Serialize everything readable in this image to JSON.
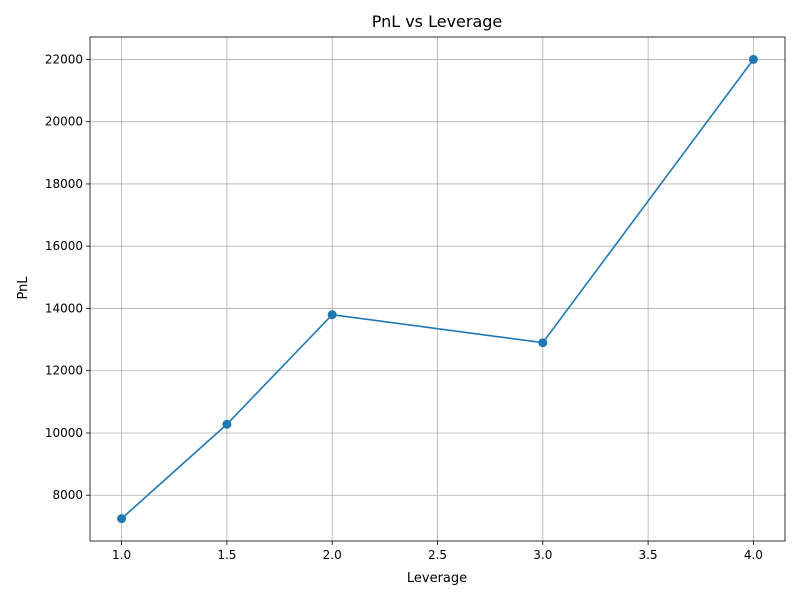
{
  "chart_data": {
    "type": "line",
    "title": "PnL vs Leverage",
    "xlabel": "Leverage",
    "ylabel": "PnL",
    "x": [
      1.0,
      1.5,
      2.0,
      3.0,
      4.0
    ],
    "series": [
      {
        "values": [
          7250,
          10280,
          13800,
          12900,
          22000
        ],
        "color": "#1f77b4",
        "marker": "circle"
      }
    ],
    "xlim": [
      0.85,
      4.15
    ],
    "ylim": [
      6530,
      22720
    ],
    "xticks": [
      "1.0",
      "1.5",
      "2.0",
      "2.5",
      "3.0",
      "3.5",
      "4.0"
    ],
    "yticks": [
      "8000",
      "10000",
      "12000",
      "14000",
      "16000",
      "18000",
      "20000",
      "22000"
    ],
    "grid": true
  }
}
